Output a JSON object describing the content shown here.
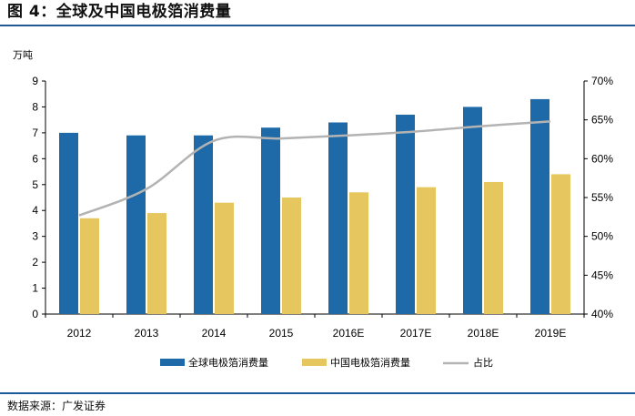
{
  "figure": {
    "title": "图 4：全球及中国电极箔消费量",
    "source": "数据来源：广发证券"
  },
  "colors": {
    "global_bar": "#1e6aa8",
    "china_bar": "#e5c65f",
    "ratio_line": "#b3b3b3",
    "rule": "#1f5a96"
  },
  "chart_data": {
    "type": "bar",
    "combo": "bar+line",
    "categories": [
      "2012",
      "2013",
      "2014",
      "2015",
      "2016E",
      "2017E",
      "2018E",
      "2019E"
    ],
    "series": [
      {
        "name": "全球电极箔消费量",
        "type": "bar",
        "axis": "left",
        "values": [
          7.0,
          6.9,
          6.9,
          7.2,
          7.4,
          7.7,
          8.0,
          8.3
        ]
      },
      {
        "name": "中国电极箔消费量",
        "type": "bar",
        "axis": "left",
        "values": [
          3.7,
          3.9,
          4.3,
          4.5,
          4.7,
          4.9,
          5.1,
          5.4
        ]
      },
      {
        "name": "占比",
        "type": "line",
        "axis": "right",
        "values": [
          52.7,
          56.1,
          62.3,
          62.6,
          63.0,
          63.5,
          64.2,
          64.8
        ]
      }
    ],
    "left_axis": {
      "unit": "万吨",
      "ylim": [
        0,
        9
      ],
      "ticks": [
        "0",
        "1",
        "2",
        "3",
        "4",
        "5",
        "6",
        "7",
        "8",
        "9"
      ]
    },
    "right_axis": {
      "ylim": [
        40,
        70
      ],
      "ticks": [
        "40%",
        "45%",
        "50%",
        "55%",
        "60%",
        "65%",
        "70%"
      ]
    },
    "grid": false,
    "legend_position": "bottom"
  }
}
